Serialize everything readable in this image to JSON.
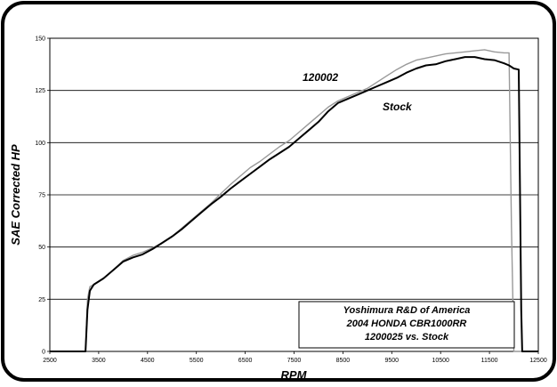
{
  "chart_data": {
    "type": "line",
    "title_lines": [
      "Yoshimura R&D of America",
      "2004 HONDA CBR1000RR",
      "1200025 vs. Stock"
    ],
    "xlabel": "RPM",
    "ylabel": "SAE Corrected HP",
    "xlim": [
      2500,
      12500
    ],
    "ylim": [
      0,
      150
    ],
    "x_ticks": [
      2500,
      3500,
      4500,
      5500,
      6500,
      7500,
      8500,
      9500,
      10500,
      11500,
      12500
    ],
    "y_ticks": [
      0,
      25,
      50,
      75,
      100,
      125,
      150
    ],
    "grid": "horizontal",
    "annotations": [
      {
        "text": "120002",
        "series": "120002"
      },
      {
        "text": "Stock",
        "series": "Stock"
      }
    ],
    "series": [
      {
        "name": "120002",
        "color": "#999999",
        "points": [
          [
            2500,
            0
          ],
          [
            3100,
            0
          ],
          [
            3230,
            0
          ],
          [
            3270,
            25
          ],
          [
            3320,
            31
          ],
          [
            3400,
            32
          ],
          [
            3600,
            35
          ],
          [
            3800,
            39
          ],
          [
            4000,
            43.5
          ],
          [
            4200,
            46
          ],
          [
            4400,
            47.5
          ],
          [
            4600,
            49.5
          ],
          [
            4800,
            52
          ],
          [
            5000,
            55
          ],
          [
            5200,
            59
          ],
          [
            5400,
            63
          ],
          [
            5600,
            67
          ],
          [
            5800,
            71
          ],
          [
            6000,
            75.5
          ],
          [
            6200,
            80
          ],
          [
            6400,
            84
          ],
          [
            6600,
            88
          ],
          [
            6800,
            91
          ],
          [
            7000,
            94.5
          ],
          [
            7200,
            98
          ],
          [
            7400,
            101
          ],
          [
            7600,
            105
          ],
          [
            7800,
            109
          ],
          [
            8000,
            113
          ],
          [
            8200,
            117
          ],
          [
            8400,
            120
          ],
          [
            8600,
            122
          ],
          [
            8800,
            124
          ],
          [
            9000,
            126
          ],
          [
            9200,
            129
          ],
          [
            9400,
            132
          ],
          [
            9600,
            135
          ],
          [
            9800,
            137.5
          ],
          [
            10000,
            139.5
          ],
          [
            10200,
            140.5
          ],
          [
            10400,
            141.5
          ],
          [
            10600,
            142.5
          ],
          [
            10800,
            143
          ],
          [
            11000,
            143.5
          ],
          [
            11200,
            144
          ],
          [
            11400,
            144.5
          ],
          [
            11600,
            143.5
          ],
          [
            11800,
            143
          ],
          [
            11900,
            143
          ],
          [
            11950,
            60
          ],
          [
            12000,
            0
          ],
          [
            12500,
            0
          ]
        ]
      },
      {
        "name": "Stock",
        "color": "#000000",
        "points": [
          [
            2500,
            0
          ],
          [
            3100,
            0
          ],
          [
            3230,
            0
          ],
          [
            3270,
            20
          ],
          [
            3320,
            29
          ],
          [
            3400,
            32
          ],
          [
            3600,
            35
          ],
          [
            3800,
            39
          ],
          [
            4000,
            43
          ],
          [
            4200,
            45
          ],
          [
            4400,
            46.5
          ],
          [
            4600,
            49
          ],
          [
            4800,
            52
          ],
          [
            5000,
            55
          ],
          [
            5200,
            58.5
          ],
          [
            5400,
            62.5
          ],
          [
            5600,
            66.5
          ],
          [
            5800,
            70.5
          ],
          [
            6000,
            74
          ],
          [
            6200,
            78
          ],
          [
            6400,
            81.5
          ],
          [
            6600,
            85
          ],
          [
            6800,
            88.5
          ],
          [
            7000,
            92
          ],
          [
            7200,
            95
          ],
          [
            7400,
            98
          ],
          [
            7600,
            102
          ],
          [
            7800,
            106
          ],
          [
            8000,
            110
          ],
          [
            8200,
            115
          ],
          [
            8400,
            119
          ],
          [
            8600,
            121
          ],
          [
            8800,
            123
          ],
          [
            9000,
            125
          ],
          [
            9200,
            127
          ],
          [
            9400,
            129
          ],
          [
            9600,
            131
          ],
          [
            9800,
            133.5
          ],
          [
            10000,
            135.5
          ],
          [
            10200,
            137
          ],
          [
            10400,
            137.5
          ],
          [
            10600,
            139
          ],
          [
            10800,
            140
          ],
          [
            11000,
            141
          ],
          [
            11200,
            141
          ],
          [
            11400,
            140
          ],
          [
            11600,
            139.5
          ],
          [
            11800,
            138
          ],
          [
            11900,
            137
          ],
          [
            12000,
            135.5
          ],
          [
            12100,
            135
          ],
          [
            12150,
            20
          ],
          [
            12170,
            0
          ],
          [
            12500,
            0
          ]
        ]
      }
    ]
  }
}
